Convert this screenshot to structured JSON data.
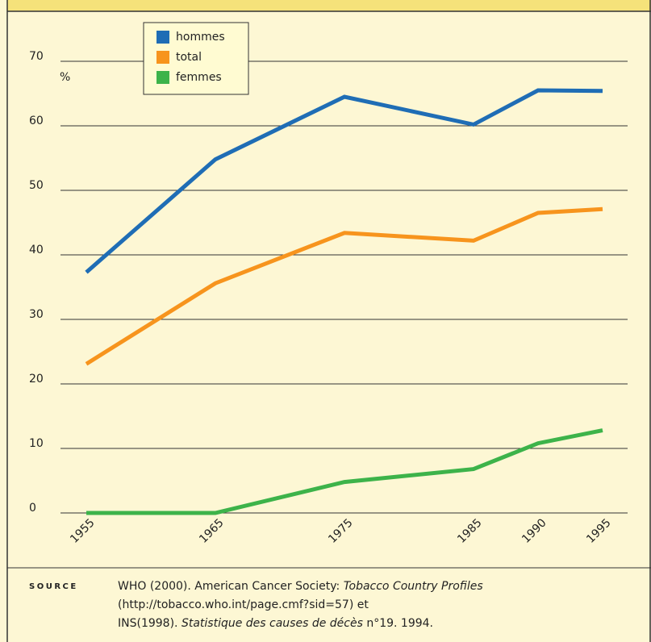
{
  "chart_data": {
    "type": "line",
    "x": [
      1955,
      1965,
      1975,
      1985,
      1990,
      1995
    ],
    "xlim": [
      1955,
      1995
    ],
    "xticks": [
      1955,
      1965,
      1975,
      1985,
      1990,
      1995
    ],
    "ylim": [
      0,
      70
    ],
    "yticks": [
      0,
      10,
      20,
      30,
      40,
      50,
      60,
      70
    ],
    "y_unit": "%",
    "grid": true,
    "series": [
      {
        "name": "hommes",
        "color": "#1f6db5",
        "values": [
          37.3,
          54.8,
          64.5,
          60.2,
          65.5,
          65.4
        ]
      },
      {
        "name": "total",
        "color": "#f7941d",
        "values": [
          23.1,
          35.6,
          43.4,
          42.2,
          46.5,
          47.1
        ]
      },
      {
        "name": "femmes",
        "color": "#3db34a",
        "values": [
          0,
          0,
          4.8,
          6.8,
          10.8,
          12.8
        ]
      }
    ]
  },
  "source": {
    "label": "SOURCE",
    "lines": [
      [
        "WHO (2000). American Cancer Society: ",
        "Tobacco Country Profiles"
      ],
      [
        "(http://tobacco.who.int/page.cmf?sid=57) et"
      ],
      [
        "INS(1998). ",
        "Statistique des causes de décès",
        " n°19. 1994."
      ]
    ]
  }
}
